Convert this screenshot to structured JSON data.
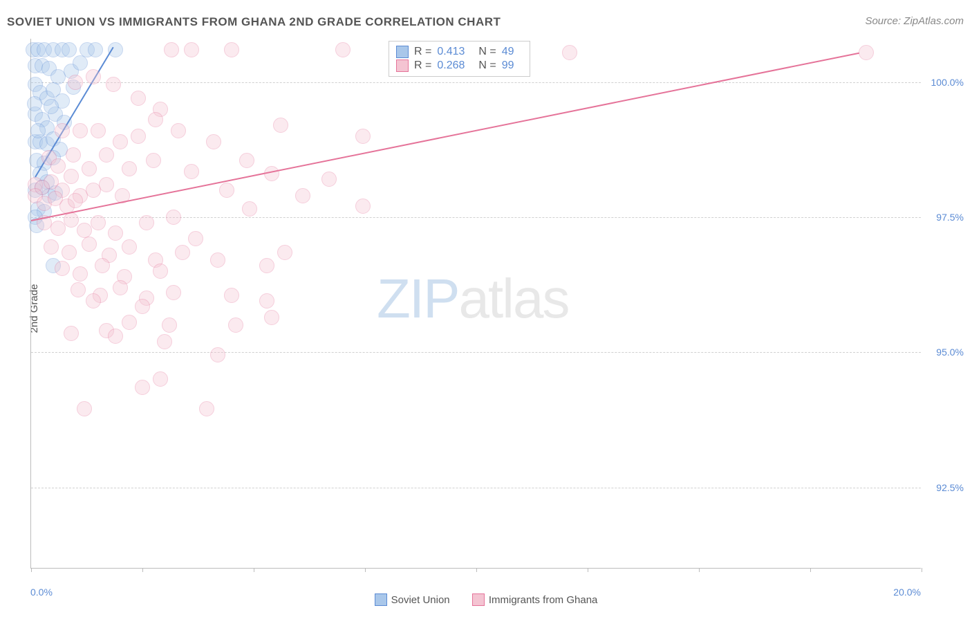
{
  "title": "SOVIET UNION VS IMMIGRANTS FROM GHANA 2ND GRADE CORRELATION CHART",
  "source": "Source: ZipAtlas.com",
  "ylabel": "2nd Grade",
  "watermark": {
    "part1": "ZIP",
    "part2": "atlas"
  },
  "chart": {
    "type": "scatter",
    "xlim": [
      0,
      20
    ],
    "ylim": [
      91.0,
      100.8
    ],
    "xticks": [
      0,
      2.5,
      5,
      7.5,
      10,
      12.5,
      15,
      17.5,
      20
    ],
    "xtick_labels": {
      "0": "0.0%",
      "20": "20.0%"
    },
    "yticks": [
      92.5,
      95.0,
      97.5,
      100.0
    ],
    "ytick_labels": [
      "92.5%",
      "95.0%",
      "97.5%",
      "100.0%"
    ],
    "background_color": "#ffffff",
    "grid_color": "#d0d0d0",
    "axis_color": "#bbbbbb",
    "label_color": "#5b8bd4",
    "marker_radius": 11,
    "marker_opacity": 0.35,
    "series": [
      {
        "name": "Soviet Union",
        "color_fill": "#a9c7ea",
        "color_stroke": "#5b8bd4",
        "R": "0.413",
        "N": "49",
        "trend": {
          "x1": 0.1,
          "y1": 98.25,
          "x2": 1.85,
          "y2": 100.65
        },
        "points": [
          [
            0.05,
            100.6
          ],
          [
            0.15,
            100.6
          ],
          [
            0.3,
            100.6
          ],
          [
            0.5,
            100.6
          ],
          [
            0.7,
            100.6
          ],
          [
            0.85,
            100.6
          ],
          [
            1.25,
            100.6
          ],
          [
            1.45,
            100.6
          ],
          [
            1.9,
            100.6
          ],
          [
            0.1,
            100.3
          ],
          [
            0.25,
            100.3
          ],
          [
            0.4,
            100.25
          ],
          [
            0.6,
            100.1
          ],
          [
            0.9,
            100.2
          ],
          [
            1.1,
            100.35
          ],
          [
            0.1,
            99.95
          ],
          [
            0.2,
            99.8
          ],
          [
            0.35,
            99.7
          ],
          [
            0.5,
            99.85
          ],
          [
            0.7,
            99.65
          ],
          [
            0.95,
            99.9
          ],
          [
            0.1,
            99.4
          ],
          [
            0.25,
            99.3
          ],
          [
            0.35,
            99.15
          ],
          [
            0.55,
            99.4
          ],
          [
            0.75,
            99.25
          ],
          [
            0.45,
            99.55
          ],
          [
            0.1,
            98.9
          ],
          [
            0.2,
            98.9
          ],
          [
            0.35,
            98.85
          ],
          [
            0.5,
            98.95
          ],
          [
            0.65,
            98.75
          ],
          [
            0.12,
            98.55
          ],
          [
            0.3,
            98.5
          ],
          [
            0.5,
            98.6
          ],
          [
            0.2,
            98.3
          ],
          [
            0.35,
            98.15
          ],
          [
            0.1,
            98.0
          ],
          [
            0.25,
            98.05
          ],
          [
            0.4,
            97.9
          ],
          [
            0.55,
            97.95
          ],
          [
            0.15,
            97.65
          ],
          [
            0.3,
            97.6
          ],
          [
            0.1,
            97.5
          ],
          [
            0.12,
            97.35
          ],
          [
            0.15,
            99.1
          ],
          [
            0.08,
            99.6
          ],
          [
            0.5,
            96.6
          ]
        ]
      },
      {
        "name": "Immigrants from Ghana",
        "color_fill": "#f4c4d2",
        "color_stroke": "#e57399",
        "R": "0.268",
        "N": "99",
        "trend": {
          "x1": 0.0,
          "y1": 97.45,
          "x2": 18.6,
          "y2": 100.55
        },
        "points": [
          [
            3.15,
            100.6
          ],
          [
            3.6,
            100.6
          ],
          [
            4.5,
            100.6
          ],
          [
            7.0,
            100.6
          ],
          [
            9.4,
            100.55
          ],
          [
            12.1,
            100.55
          ],
          [
            18.75,
            100.55
          ],
          [
            1.0,
            100.0
          ],
          [
            1.4,
            100.1
          ],
          [
            1.85,
            99.95
          ],
          [
            2.4,
            99.7
          ],
          [
            2.9,
            99.5
          ],
          [
            0.7,
            99.1
          ],
          [
            1.1,
            99.1
          ],
          [
            1.5,
            99.1
          ],
          [
            2.0,
            98.9
          ],
          [
            2.4,
            99.0
          ],
          [
            2.8,
            99.3
          ],
          [
            3.3,
            99.1
          ],
          [
            0.1,
            98.1
          ],
          [
            0.25,
            98.05
          ],
          [
            0.45,
            98.15
          ],
          [
            0.7,
            98.0
          ],
          [
            0.9,
            98.25
          ],
          [
            1.1,
            97.9
          ],
          [
            1.4,
            98.0
          ],
          [
            1.7,
            98.1
          ],
          [
            2.05,
            97.9
          ],
          [
            0.1,
            97.9
          ],
          [
            0.3,
            97.75
          ],
          [
            0.55,
            97.85
          ],
          [
            0.8,
            97.7
          ],
          [
            1.0,
            97.8
          ],
          [
            0.3,
            97.4
          ],
          [
            0.6,
            97.3
          ],
          [
            0.9,
            97.45
          ],
          [
            1.2,
            97.25
          ],
          [
            1.5,
            97.4
          ],
          [
            1.9,
            97.2
          ],
          [
            2.6,
            97.4
          ],
          [
            3.2,
            97.5
          ],
          [
            3.7,
            97.1
          ],
          [
            0.45,
            96.95
          ],
          [
            0.85,
            96.85
          ],
          [
            1.3,
            97.0
          ],
          [
            1.75,
            96.8
          ],
          [
            2.2,
            96.95
          ],
          [
            2.8,
            96.7
          ],
          [
            3.4,
            96.85
          ],
          [
            0.7,
            96.55
          ],
          [
            1.1,
            96.45
          ],
          [
            1.6,
            96.6
          ],
          [
            2.1,
            96.4
          ],
          [
            2.9,
            96.5
          ],
          [
            4.2,
            96.7
          ],
          [
            5.3,
            96.6
          ],
          [
            5.7,
            96.85
          ],
          [
            1.05,
            96.15
          ],
          [
            1.55,
            96.05
          ],
          [
            2.0,
            96.2
          ],
          [
            2.6,
            96.0
          ],
          [
            3.2,
            96.1
          ],
          [
            4.5,
            96.05
          ],
          [
            1.4,
            95.95
          ],
          [
            5.3,
            95.95
          ],
          [
            5.4,
            95.65
          ],
          [
            0.9,
            95.35
          ],
          [
            1.7,
            95.4
          ],
          [
            2.2,
            95.55
          ],
          [
            3.0,
            95.2
          ],
          [
            4.2,
            94.95
          ],
          [
            4.6,
            95.5
          ],
          [
            2.5,
            94.35
          ],
          [
            2.9,
            94.5
          ],
          [
            1.2,
            93.95
          ],
          [
            3.95,
            93.95
          ],
          [
            7.45,
            99.0
          ],
          [
            6.7,
            98.2
          ],
          [
            7.45,
            97.7
          ],
          [
            4.4,
            98.0
          ],
          [
            4.9,
            97.65
          ],
          [
            5.4,
            98.3
          ],
          [
            1.9,
            95.3
          ],
          [
            2.5,
            95.85
          ],
          [
            0.4,
            98.6
          ],
          [
            0.6,
            98.45
          ],
          [
            0.95,
            98.65
          ],
          [
            1.3,
            98.4
          ],
          [
            1.7,
            98.65
          ],
          [
            2.2,
            98.4
          ],
          [
            2.75,
            98.55
          ],
          [
            3.6,
            98.35
          ],
          [
            4.1,
            98.9
          ],
          [
            4.85,
            98.55
          ],
          [
            5.6,
            99.2
          ],
          [
            3.1,
            95.5
          ],
          [
            6.1,
            97.9
          ]
        ]
      }
    ]
  },
  "legend_bottom": [
    {
      "label": "Soviet Union",
      "fill": "#a9c7ea",
      "stroke": "#5b8bd4"
    },
    {
      "label": "Immigrants from Ghana",
      "fill": "#f4c4d2",
      "stroke": "#e57399"
    }
  ]
}
